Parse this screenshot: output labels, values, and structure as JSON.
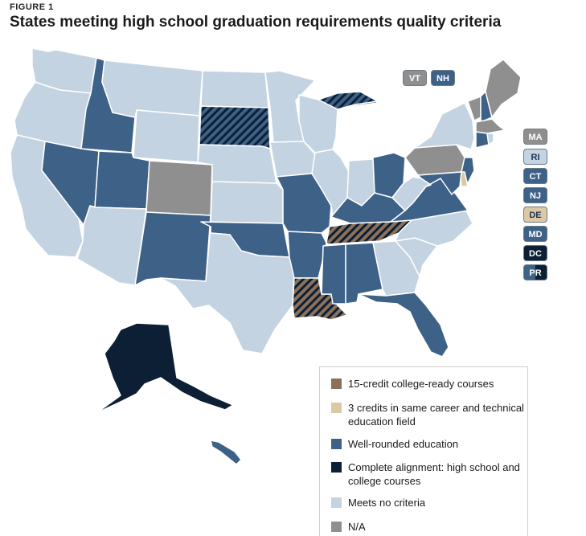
{
  "figure_label": "FIGURE 1",
  "title": "States meeting high school graduation requirements quality criteria",
  "colors": {
    "college_ready": "#8b7159",
    "career_tech": "#dcc8a4",
    "well_rounded": "#3e6188",
    "complete": "#0c1f35",
    "none": "#c3d3e2",
    "na": "#8f8f8f",
    "border": "#ffffff"
  },
  "legend": {
    "items": [
      {
        "key": "college_ready",
        "label": "15-credit college-ready courses"
      },
      {
        "key": "career_tech",
        "label": "3 credits in same career and technical education field"
      },
      {
        "key": "well_rounded",
        "label": "Well-rounded education"
      },
      {
        "key": "complete",
        "label": "Complete alignment: high school and college courses"
      },
      {
        "key": "none",
        "label": "Meets no criteria"
      },
      {
        "key": "na",
        "label": "N/A"
      }
    ]
  },
  "badges": {
    "VT": {
      "label": "VT",
      "category": "na"
    },
    "NH": {
      "label": "NH",
      "category": "well_rounded"
    },
    "MA": {
      "label": "MA",
      "category": "na"
    },
    "RI": {
      "label": "RI",
      "category": "none"
    },
    "CT": {
      "label": "CT",
      "category": "well_rounded"
    },
    "NJ": {
      "label": "NJ",
      "category": "well_rounded"
    },
    "DE": {
      "label": "DE",
      "category": "career_tech"
    },
    "MD": {
      "label": "MD",
      "category": "well_rounded"
    },
    "DC": {
      "label": "DC",
      "category": "complete"
    },
    "PR": {
      "label": "PR",
      "category": "complete_well_rounded"
    }
  },
  "states": {
    "WA": [
      "none"
    ],
    "OR": [
      "none"
    ],
    "CA": [
      "none"
    ],
    "ID": [
      "well_rounded"
    ],
    "NV": [
      "well_rounded"
    ],
    "MT": [
      "none"
    ],
    "WY": [
      "none"
    ],
    "UT": [
      "well_rounded"
    ],
    "AZ": [
      "none"
    ],
    "CO": [
      "na"
    ],
    "NM": [
      "well_rounded"
    ],
    "ND": [
      "none"
    ],
    "SD": [
      "well_rounded",
      "complete"
    ],
    "NE": [
      "none"
    ],
    "KS": [
      "none"
    ],
    "OK": [
      "well_rounded"
    ],
    "TX": [
      "none"
    ],
    "MN": [
      "none"
    ],
    "IA": [
      "none"
    ],
    "MO": [
      "well_rounded"
    ],
    "AR": [
      "well_rounded"
    ],
    "LA": [
      "college_ready",
      "complete"
    ],
    "WI": [
      "none"
    ],
    "IL": [
      "none"
    ],
    "MI": [
      "well_rounded",
      "complete"
    ],
    "IN": [
      "none"
    ],
    "OH": [
      "well_rounded"
    ],
    "KY": [
      "well_rounded"
    ],
    "TN": [
      "college_ready",
      "complete"
    ],
    "MS": [
      "well_rounded"
    ],
    "AL": [
      "well_rounded"
    ],
    "GA": [
      "none"
    ],
    "FL": [
      "well_rounded"
    ],
    "SC": [
      "none"
    ],
    "NC": [
      "none"
    ],
    "VA": [
      "well_rounded"
    ],
    "WV": [
      "none"
    ],
    "PA": [
      "na"
    ],
    "NY": [
      "none"
    ],
    "VT": [
      "na"
    ],
    "NH": [
      "well_rounded"
    ],
    "ME": [
      "na"
    ],
    "MA": [
      "na"
    ],
    "RI": [
      "none"
    ],
    "CT": [
      "well_rounded"
    ],
    "NJ": [
      "well_rounded"
    ],
    "DE": [
      "career_tech"
    ],
    "MD": [
      "well_rounded"
    ],
    "AK": [
      "complete"
    ],
    "HI": [
      "well_rounded"
    ]
  }
}
